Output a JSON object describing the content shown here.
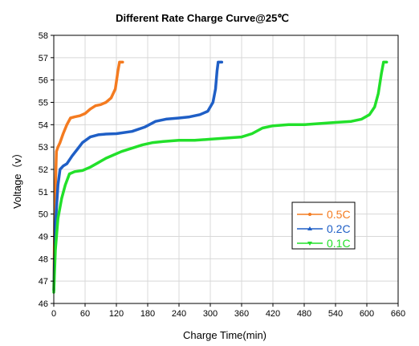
{
  "chart_data": {
    "type": "line",
    "title": "Different Rate Charge Curve@25℃",
    "xlabel": "Charge Time(min)",
    "ylabel": "Voltage（v）",
    "xlim": [
      0,
      660
    ],
    "ylim": [
      46,
      58
    ],
    "xticks": [
      0,
      60,
      120,
      180,
      240,
      300,
      360,
      420,
      480,
      540,
      600,
      660
    ],
    "yticks": [
      46,
      47,
      48,
      49,
      50,
      51,
      52,
      53,
      54,
      55,
      56,
      57,
      58
    ],
    "grid": true,
    "legend_position": "lower-right",
    "series": [
      {
        "name": "0.5C",
        "color": "#f47b20",
        "marker": "circle",
        "x": [
          0,
          2,
          5,
          8,
          12,
          18,
          25,
          32,
          40,
          50,
          60,
          70,
          80,
          90,
          100,
          110,
          118,
          123,
          126,
          128,
          130,
          132
        ],
        "y": [
          46.6,
          50.2,
          52.8,
          53.0,
          53.2,
          53.6,
          54.0,
          54.3,
          54.35,
          54.4,
          54.5,
          54.7,
          54.85,
          54.9,
          55.0,
          55.2,
          55.6,
          56.4,
          56.8,
          56.8,
          56.8,
          56.8
        ]
      },
      {
        "name": "0.2C",
        "color": "#1f5fc6",
        "marker": "triangle",
        "x": [
          0,
          3,
          8,
          12,
          18,
          25,
          35,
          45,
          55,
          70,
          85,
          100,
          120,
          150,
          175,
          195,
          215,
          240,
          260,
          280,
          295,
          305,
          310,
          313,
          315,
          318,
          322
        ],
        "y": [
          46.6,
          49.5,
          51.3,
          52.0,
          52.15,
          52.25,
          52.6,
          52.9,
          53.2,
          53.45,
          53.55,
          53.58,
          53.6,
          53.7,
          53.9,
          54.15,
          54.25,
          54.3,
          54.35,
          54.45,
          54.6,
          55.0,
          55.6,
          56.4,
          56.8,
          56.8,
          56.8
        ]
      },
      {
        "name": "0.1C",
        "color": "#22e02a",
        "marker": "triangle-down",
        "x": [
          0,
          3,
          8,
          15,
          22,
          30,
          40,
          55,
          70,
          85,
          100,
          115,
          130,
          150,
          170,
          190,
          210,
          240,
          270,
          300,
          330,
          360,
          380,
          400,
          420,
          450,
          480,
          510,
          540,
          570,
          590,
          605,
          615,
          622,
          628,
          632,
          638
        ],
        "y": [
          46.5,
          48.4,
          49.8,
          50.7,
          51.3,
          51.8,
          51.9,
          51.95,
          52.1,
          52.3,
          52.5,
          52.65,
          52.8,
          52.95,
          53.1,
          53.2,
          53.25,
          53.3,
          53.3,
          53.35,
          53.4,
          53.45,
          53.6,
          53.85,
          53.95,
          54.0,
          54.0,
          54.05,
          54.1,
          54.15,
          54.25,
          54.45,
          54.8,
          55.4,
          56.3,
          56.8,
          56.8
        ]
      }
    ]
  }
}
